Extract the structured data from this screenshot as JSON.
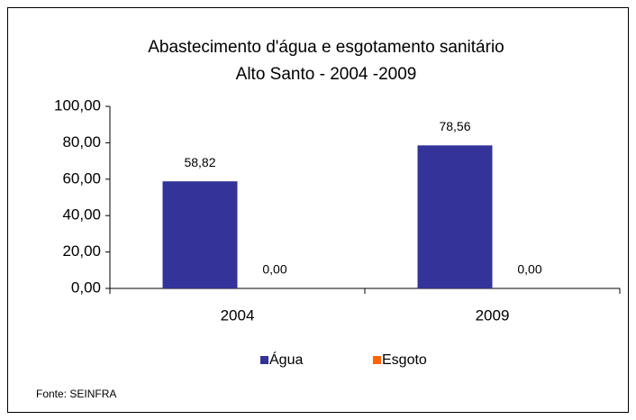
{
  "chart_data": {
    "type": "bar",
    "title": "Abastecimento d'água e esgotamento sanitário",
    "subtitle": "Alto Santo - 2004 -2009",
    "categories": [
      "2004",
      "2009"
    ],
    "series": [
      {
        "name": "Água",
        "color": "#333399",
        "values": [
          58.82,
          78.56
        ],
        "value_labels": [
          "58,82",
          "78,56"
        ]
      },
      {
        "name": "Esgoto",
        "color": "#ff6600",
        "values": [
          0,
          0
        ],
        "value_labels": [
          "0,00",
          "0,00"
        ]
      }
    ],
    "ylim": [
      0,
      100
    ],
    "yticks": [
      {
        "value": 0,
        "label": "0,00"
      },
      {
        "value": 20,
        "label": "20,00"
      },
      {
        "value": 40,
        "label": "40,00"
      },
      {
        "value": 60,
        "label": "60,00"
      },
      {
        "value": 80,
        "label": "80,00"
      },
      {
        "value": 100,
        "label": "100,00"
      }
    ],
    "grid": false,
    "legend": "bottom",
    "source": "Fonte: SEINFRA"
  }
}
